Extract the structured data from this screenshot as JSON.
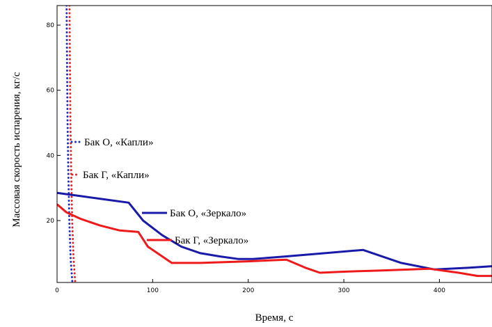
{
  "chart_data": {
    "type": "line",
    "xlabel": "Время, с",
    "ylabel": "Массовая скорость испарения, кг/с",
    "xlim": [
      0,
      455
    ],
    "ylim": [
      1,
      86
    ],
    "x_ticks": [
      0,
      100,
      200,
      300,
      400
    ],
    "y_ticks": [
      20,
      40,
      60,
      80
    ],
    "grid": false,
    "series": [
      {
        "name": "Бак О, «Капли»",
        "color": "#1a2dbd",
        "style": "dotted",
        "points": [
          [
            10,
            86
          ],
          [
            10.4,
            70
          ],
          [
            11,
            50
          ],
          [
            11.8,
            35
          ],
          [
            12.8,
            20
          ],
          [
            14.3,
            8
          ],
          [
            16,
            1
          ]
        ]
      },
      {
        "name": "Бак Г, «Капли»",
        "color": "#e8202a",
        "style": "dotted",
        "points": [
          [
            13,
            86
          ],
          [
            13.4,
            70
          ],
          [
            14,
            50
          ],
          [
            14.8,
            35
          ],
          [
            15.8,
            20
          ],
          [
            17.3,
            8
          ],
          [
            19,
            1
          ]
        ]
      },
      {
        "name": "Бак О, «Зеркало»",
        "color": "#1a1aa8",
        "style": "solid",
        "points": [
          [
            0,
            28.5
          ],
          [
            25,
            27.5
          ],
          [
            50,
            26.5
          ],
          [
            75,
            25.5
          ],
          [
            90,
            20
          ],
          [
            110,
            15.5
          ],
          [
            130,
            12
          ],
          [
            150,
            10
          ],
          [
            170,
            9
          ],
          [
            190,
            8.2
          ],
          [
            205,
            8.2
          ],
          [
            240,
            9
          ],
          [
            280,
            10
          ],
          [
            320,
            11
          ],
          [
            360,
            7
          ],
          [
            395,
            5
          ],
          [
            430,
            5.5
          ],
          [
            455,
            6
          ]
        ]
      },
      {
        "name": "Бак Г, «Зеркало»",
        "color": "#ee1a1a",
        "style": "solid",
        "points": [
          [
            0,
            25
          ],
          [
            10,
            22.5
          ],
          [
            25,
            20.5
          ],
          [
            45,
            18.5
          ],
          [
            65,
            17
          ],
          [
            85,
            16.5
          ],
          [
            95,
            12
          ],
          [
            110,
            9
          ],
          [
            120,
            7
          ],
          [
            150,
            7
          ],
          [
            200,
            7.5
          ],
          [
            240,
            8
          ],
          [
            260,
            5.5
          ],
          [
            275,
            4
          ],
          [
            300,
            4.3
          ],
          [
            340,
            4.7
          ],
          [
            390,
            5.2
          ],
          [
            420,
            4
          ],
          [
            440,
            3
          ],
          [
            455,
            3
          ]
        ]
      }
    ]
  }
}
